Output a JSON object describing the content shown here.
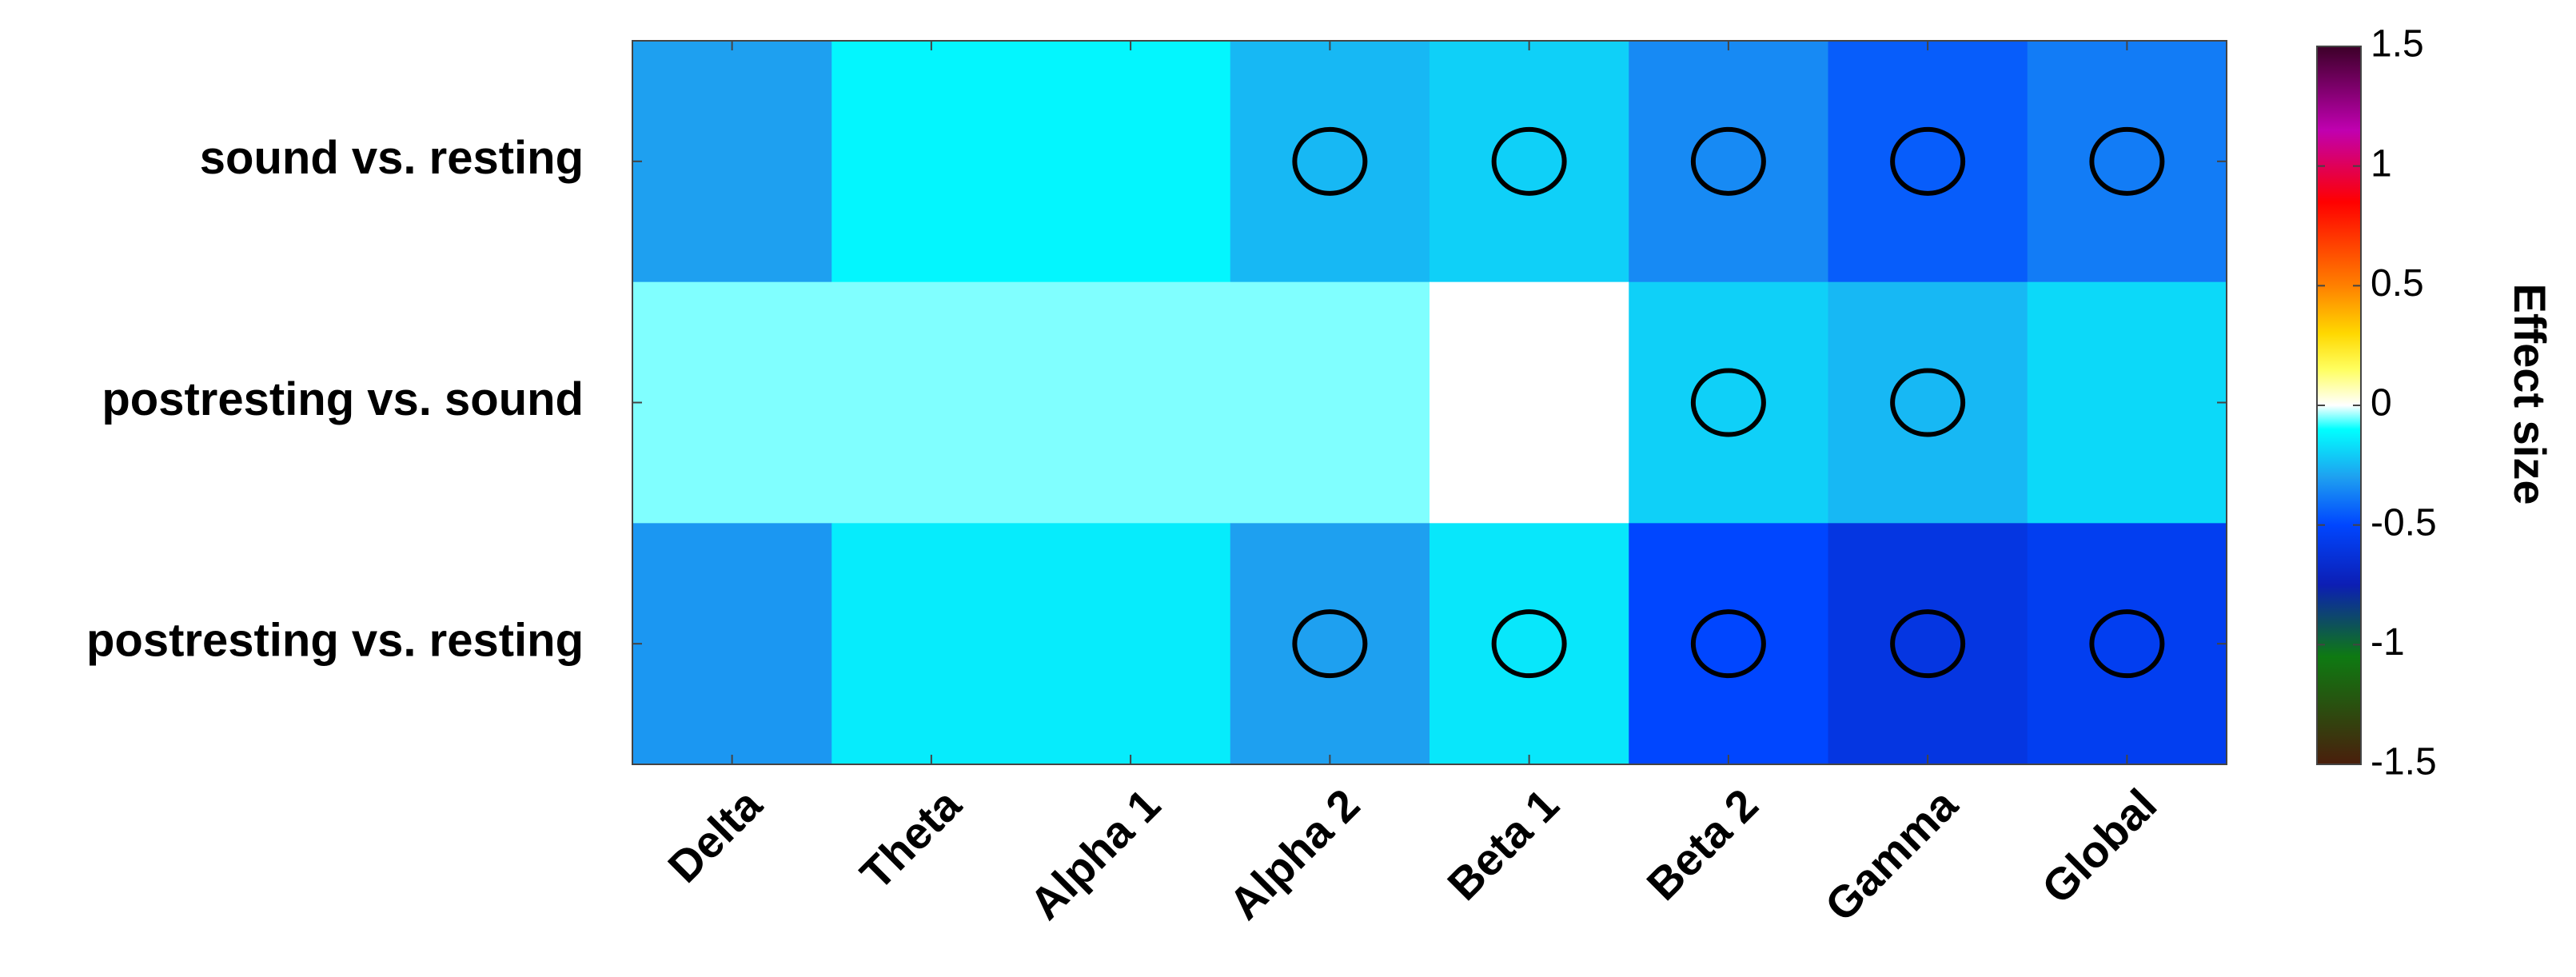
{
  "chart_data": {
    "type": "heatmap",
    "categories": [
      "Delta",
      "Theta",
      "Alpha 1",
      "Alpha 2",
      "Beta 1",
      "Beta 2",
      "Gamma",
      "Global"
    ],
    "rows": [
      "sound vs. resting",
      "postresting vs. sound",
      "postresting vs. resting"
    ],
    "values": [
      [
        -0.3,
        -0.12,
        -0.12,
        -0.25,
        -0.2,
        -0.35,
        -0.45,
        -0.38
      ],
      [
        -0.05,
        -0.05,
        -0.05,
        -0.05,
        0,
        -0.2,
        -0.25,
        -0.18
      ],
      [
        -0.32,
        -0.14,
        -0.14,
        -0.3,
        -0.15,
        -0.5,
        -0.6,
        -0.55
      ]
    ],
    "significant": [
      [
        false,
        false,
        false,
        true,
        true,
        true,
        true,
        true
      ],
      [
        false,
        false,
        false,
        false,
        false,
        true,
        true,
        false
      ],
      [
        false,
        false,
        false,
        true,
        true,
        true,
        true,
        true
      ]
    ],
    "colorbar_label": "Effect size",
    "zlim": [
      -1.5,
      1.5
    ],
    "zticks": [
      1.5,
      1,
      0.5,
      0,
      -0.5,
      -1,
      -1.5
    ],
    "colormap": [
      {
        "value": -1.5,
        "color": "#4a1e0c"
      },
      {
        "value": -1.05,
        "color": "#0e7a12"
      },
      {
        "value": -0.75,
        "color": "#0c1eb4"
      },
      {
        "value": -0.5,
        "color": "#0046ff"
      },
      {
        "value": -0.3,
        "color": "#1ea0f0"
      },
      {
        "value": -0.1,
        "color": "#00ffff"
      },
      {
        "value": 0,
        "color": "#ffffff"
      },
      {
        "value": 0.15,
        "color": "#ffff60"
      },
      {
        "value": 0.3,
        "color": "#ffd800"
      },
      {
        "value": 0.5,
        "color": "#ff8000"
      },
      {
        "value": 0.85,
        "color": "#ff0000"
      },
      {
        "value": 1.15,
        "color": "#c000b0"
      },
      {
        "value": 1.5,
        "color": "#3c0028"
      }
    ]
  }
}
